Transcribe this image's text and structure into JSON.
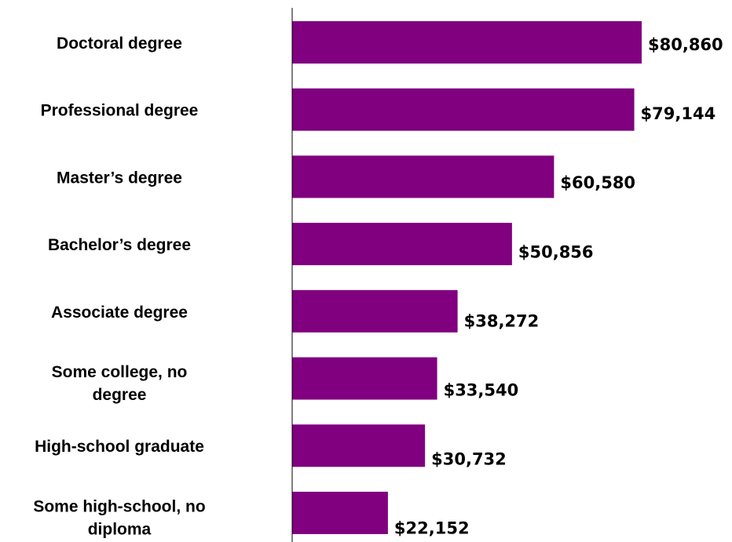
{
  "chart_data": {
    "type": "bar",
    "orientation": "horizontal",
    "categories": [
      [
        "Doctoral degree"
      ],
      [
        "Professional degree"
      ],
      [
        "Master’s degree"
      ],
      [
        "Bachelor’s degree"
      ],
      [
        "Associate degree"
      ],
      [
        "Some college, no",
        "degree"
      ],
      [
        "High-school graduate"
      ],
      [
        "Some high-school, no",
        "diploma"
      ]
    ],
    "values": [
      80860,
      79144,
      60580,
      50856,
      38272,
      33540,
      30732,
      22152
    ],
    "value_labels": [
      "$80,860",
      "$79,144",
      "$60,580",
      "$50,856",
      "$38,272",
      "$33,540",
      "$30,732",
      "$22,152"
    ],
    "xlim": [
      0,
      100000
    ],
    "bar_color": "#800080",
    "grid": false,
    "legend": "none"
  }
}
